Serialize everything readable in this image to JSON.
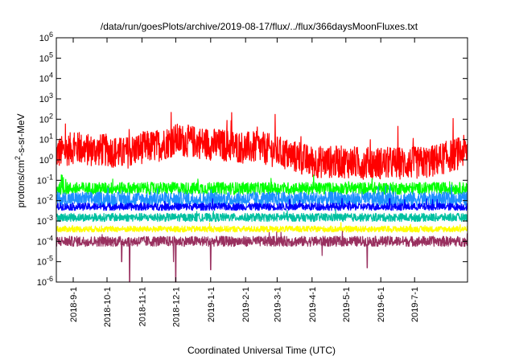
{
  "chart_data": {
    "type": "line",
    "title": "/data/run/goesPlots/archive/2019-08-17/flux/../flux/366daysMoonFluxes.txt",
    "xlabel": "Coordinated Universal Time (UTC)",
    "ylabel": "protons/cm2-s-sr-MeV",
    "ylabel_parts": {
      "pre": "protons/cm",
      "sup": "2",
      "post": "-s-sr-MeV"
    },
    "yscale": "log",
    "ylim": [
      1e-06,
      1000000.0
    ],
    "xlim": [
      "2018-08-17",
      "2019-08-17"
    ],
    "grid": false,
    "y_ticks": [
      {
        "base": "10",
        "exp": "-6",
        "value": 1e-06
      },
      {
        "base": "10",
        "exp": "-5",
        "value": 1e-05
      },
      {
        "base": "10",
        "exp": "-4",
        "value": 0.0001
      },
      {
        "base": "10",
        "exp": "-3",
        "value": 0.001
      },
      {
        "base": "10",
        "exp": "-2",
        "value": 0.01
      },
      {
        "base": "10",
        "exp": "-1",
        "value": 0.1
      },
      {
        "base": "10",
        "exp": "0",
        "value": 1
      },
      {
        "base": "10",
        "exp": "1",
        "value": 10
      },
      {
        "base": "10",
        "exp": "2",
        "value": 100
      },
      {
        "base": "10",
        "exp": "3",
        "value": 1000.0
      },
      {
        "base": "10",
        "exp": "4",
        "value": 10000.0
      },
      {
        "base": "10",
        "exp": "5",
        "value": 100000.0
      },
      {
        "base": "10",
        "exp": "6",
        "value": 1000000.0
      }
    ],
    "x_ticks": [
      {
        "label": "2018-9-1",
        "date": "2018-09-01"
      },
      {
        "label": "2018-10-1",
        "date": "2018-10-01"
      },
      {
        "label": "2018-11-1",
        "date": "2018-11-01"
      },
      {
        "label": "2018-12-1",
        "date": "2018-12-01"
      },
      {
        "label": "2019-1-1",
        "date": "2019-01-01"
      },
      {
        "label": "2019-2-1",
        "date": "2019-02-01"
      },
      {
        "label": "2019-3-1",
        "date": "2019-03-01"
      },
      {
        "label": "2019-4-1",
        "date": "2019-04-01"
      },
      {
        "label": "2019-5-1",
        "date": "2019-05-01"
      },
      {
        "label": "2019-6-1",
        "date": "2019-06-01"
      },
      {
        "label": "2019-7-1",
        "date": "2019-07-01"
      }
    ],
    "series": [
      {
        "color": "#ff0000",
        "dates": [
          "2018-08-17",
          "2018-09-01",
          "2018-09-15",
          "2018-10-01",
          "2018-10-15",
          "2018-11-01",
          "2018-11-15",
          "2018-12-01",
          "2018-12-15",
          "2019-01-01",
          "2019-01-15",
          "2019-02-01",
          "2019-02-15",
          "2019-03-01",
          "2019-03-15",
          "2019-04-01",
          "2019-04-15",
          "2019-05-01",
          "2019-05-15",
          "2019-06-01",
          "2019-06-15",
          "2019-07-01",
          "2019-07-15",
          "2019-08-01",
          "2019-08-17"
        ],
        "values": [
          2,
          4,
          3,
          3,
          2,
          4,
          5,
          10,
          8,
          6,
          5,
          4,
          4,
          2.5,
          1.5,
          0.8,
          0.8,
          0.8,
          0.7,
          0.7,
          0.7,
          0.7,
          0.8,
          1.5,
          3
        ],
        "spread_decades": 0.8
      },
      {
        "color": "#00ff00",
        "dates": [
          "2018-08-17",
          "2019-08-17"
        ],
        "values": [
          0.04,
          0.04
        ],
        "spread_decades": 0.3
      },
      {
        "color": "#1e90ff",
        "dates": [
          "2018-08-17",
          "2019-08-17"
        ],
        "values": [
          0.012,
          0.012
        ],
        "spread_decades": 0.35
      },
      {
        "color": "#0000ff",
        "dates": [
          "2018-08-17",
          "2019-08-17"
        ],
        "values": [
          0.005,
          0.005
        ],
        "spread_decades": 0.18
      },
      {
        "color": "#00c0a0",
        "dates": [
          "2018-08-17",
          "2019-08-17"
        ],
        "values": [
          0.0015,
          0.0015
        ],
        "spread_decades": 0.2
      },
      {
        "color": "#ffff00",
        "dates": [
          "2018-08-17",
          "2019-08-17"
        ],
        "values": [
          0.0004,
          0.0004
        ],
        "spread_decades": 0.15
      },
      {
        "color": "#99305f",
        "dates": [
          "2018-08-17",
          "2019-08-17"
        ],
        "values": [
          0.0001,
          0.0001
        ],
        "spread_decades": 0.25,
        "dips": [
          {
            "date": "2018-10-21",
            "value": 1e-06
          },
          {
            "date": "2018-12-01",
            "value": 1e-06
          },
          {
            "date": "2018-10-14",
            "value": 1e-05
          },
          {
            "date": "2018-11-29",
            "value": 1e-05
          },
          {
            "date": "2019-01-01",
            "value": 4e-06
          },
          {
            "date": "2019-04-10",
            "value": 2e-05
          },
          {
            "date": "2019-05-20",
            "value": 5e-06
          }
        ]
      }
    ]
  }
}
